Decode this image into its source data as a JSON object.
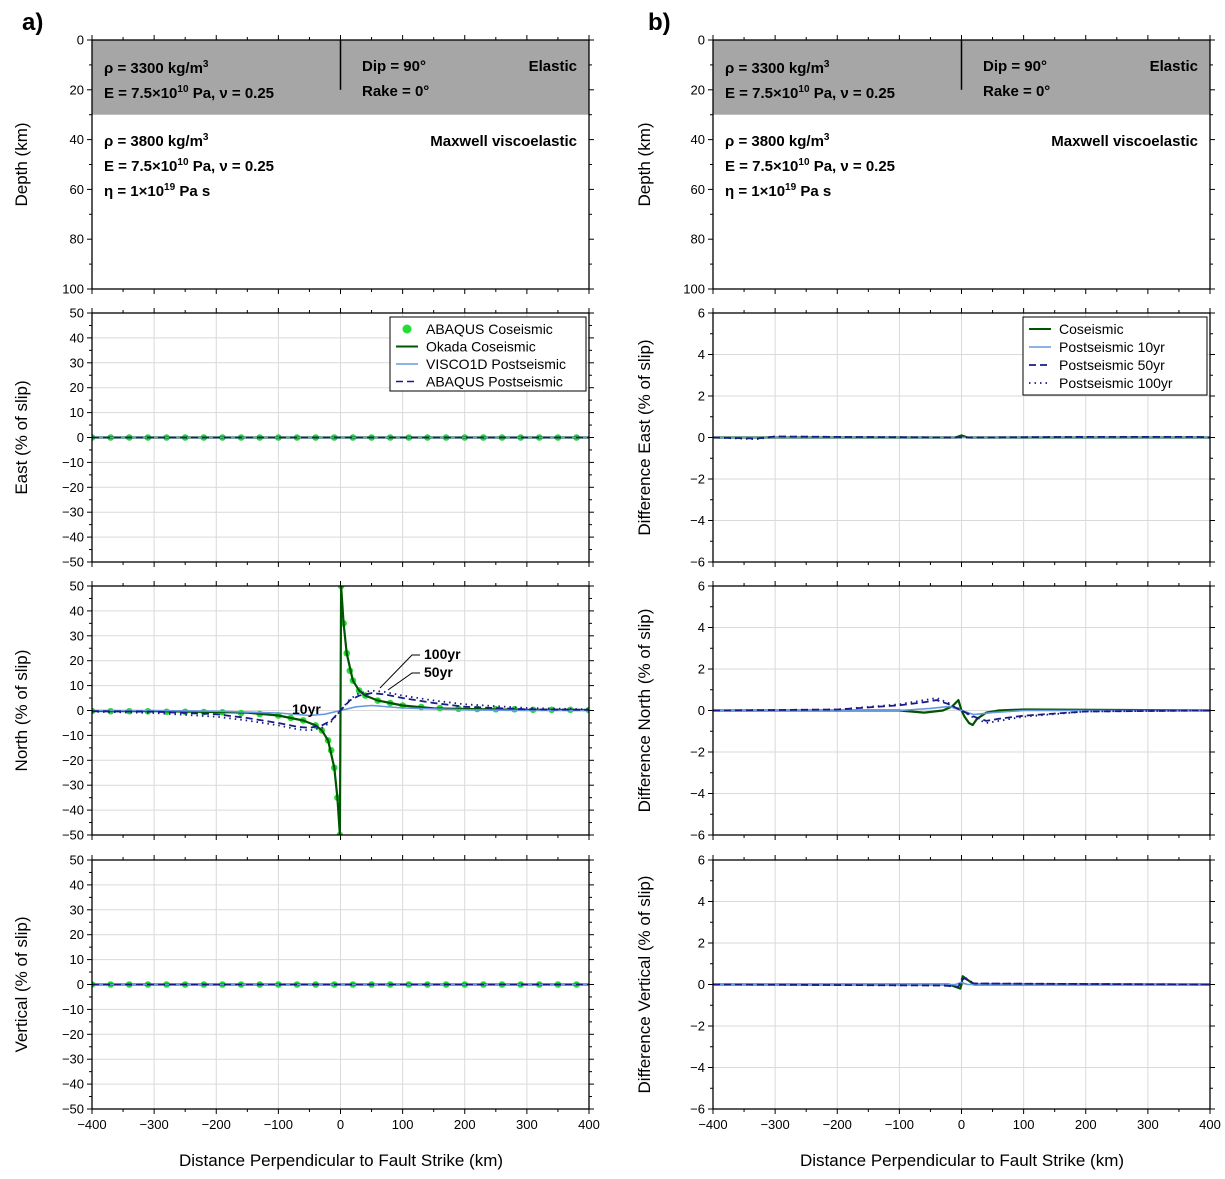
{
  "panel_labels": [
    "a)",
    "b)"
  ],
  "xlabel": "Distance Perpendicular to Fault Strike (km)",
  "x_ticks": [
    "−400",
    "−300",
    "−200",
    "−100",
    "0",
    "100",
    "200",
    "300",
    "400"
  ],
  "model": {
    "upper_density": "ρ = 3300 kg/m",
    "upper_density_exp": "3",
    "upper_modulus_a": "E = 7.5×10",
    "upper_modulus_exp": "10",
    "upper_modulus_b": " Pa, ν = 0.25",
    "dip": "Dip = 90°",
    "rake": "Rake = 0°",
    "upper_type": "Elastic",
    "lower_density": "ρ = 3800 kg/m",
    "lower_density_exp": "3",
    "lower_modulus_a": "E =  7.5×10",
    "lower_modulus_exp": "10",
    "lower_modulus_b": " Pa, ν = 0.25",
    "lower_viscosity_a": "η = 1×10",
    "lower_viscosity_exp": "19",
    "lower_viscosity_b": " Pa s",
    "lower_type": "Maxwell viscoelastic"
  },
  "colors": {
    "abaqus_coseismic": "#22dd33",
    "okada_coseismic": "#005500",
    "visco1d_postseismic": "#6699dd",
    "abaqus_postseismic": "#1a1a88",
    "elastic_layer": "#a6a6a6",
    "grid": "#d9d9d9"
  },
  "left_legend": [
    "ABAQUS Coseismic",
    "Okada Coseismic",
    "VISCO1D Postseismic",
    "ABAQUS Postseismic"
  ],
  "right_legend": [
    "Coseismic",
    "Postseismic 10yr",
    "Postseismic 50yr",
    "Postseismic 100yr"
  ],
  "annotations": [
    "100yr",
    "50yr",
    "10yr"
  ],
  "chart_data": [
    {
      "type": "line",
      "panel": "a-depth",
      "ylabel": "Depth (km)",
      "y_ticks": [
        "0",
        "20",
        "40",
        "60",
        "80",
        "100"
      ],
      "xlim": [
        -400,
        400
      ],
      "ylim": [
        100,
        0
      ],
      "elastic_layer_depth_km": [
        0,
        30
      ],
      "fault_trace": {
        "x": 0,
        "depth": [
          0,
          20
        ]
      }
    },
    {
      "type": "line",
      "panel": "a-east",
      "ylabel": "East (% of slip)",
      "y_ticks": [
        "50",
        "40",
        "30",
        "20",
        "10",
        "0",
        "−10",
        "−20",
        "−30",
        "−40",
        "−50"
      ],
      "xlim": [
        -400,
        400
      ],
      "ylim": [
        -50,
        50
      ],
      "series": [
        {
          "name": "ABAQUS Coseismic",
          "x": [
            -400,
            -370,
            -340,
            -310,
            -280,
            -250,
            -220,
            -190,
            -160,
            -130,
            -100,
            -70,
            -40,
            -10,
            20,
            50,
            80,
            110,
            140,
            170,
            200,
            230,
            260,
            290,
            320,
            350,
            380
          ],
          "y": [
            0,
            0,
            0,
            0,
            0,
            0,
            0,
            0,
            0,
            0,
            0,
            0,
            0,
            0,
            0,
            0,
            0,
            0,
            0,
            0,
            0,
            0,
            0,
            0,
            0,
            0,
            0
          ]
        },
        {
          "name": "Okada Coseismic",
          "x": [
            -400,
            400
          ],
          "y": [
            0,
            0
          ]
        },
        {
          "name": "VISCO1D Postseismic",
          "x": [
            -400,
            400
          ],
          "y": [
            0,
            0
          ]
        },
        {
          "name": "ABAQUS Postseismic",
          "x": [
            -400,
            400
          ],
          "y": [
            0,
            0
          ]
        }
      ]
    },
    {
      "type": "line",
      "panel": "a-north",
      "ylabel": "North (% of slip)",
      "y_ticks": [
        "50",
        "40",
        "30",
        "20",
        "10",
        "0",
        "−10",
        "−20",
        "−30",
        "−40",
        "−50"
      ],
      "xlim": [
        -400,
        400
      ],
      "ylim": [
        -50,
        50
      ],
      "series": [
        {
          "name": "ABAQUS Coseismic",
          "x": [
            -400,
            -370,
            -340,
            -310,
            -280,
            -250,
            -220,
            -190,
            -160,
            -130,
            -100,
            -80,
            -60,
            -40,
            -30,
            -20,
            -15,
            -10,
            -5,
            -1,
            1,
            5,
            10,
            15,
            20,
            30,
            40,
            60,
            80,
            100,
            130,
            160,
            190,
            220,
            250,
            280,
            310,
            340,
            370,
            400
          ],
          "y": [
            -0.2,
            -0.3,
            -0.3,
            -0.3,
            -0.5,
            -0.5,
            -0.6,
            -0.7,
            -1,
            -1.4,
            -2,
            -3,
            -4,
            -6,
            -8,
            -12,
            -16,
            -23,
            -35,
            -50,
            50,
            35,
            23,
            16,
            12,
            8,
            6,
            4,
            3,
            2,
            1.4,
            1,
            0.7,
            0.6,
            0.5,
            0.5,
            0.3,
            0.3,
            0.3,
            0.2
          ]
        },
        {
          "name": "Okada Coseismic",
          "x": [
            -400,
            -300,
            -200,
            -150,
            -100,
            -80,
            -60,
            -40,
            -30,
            -20,
            -10,
            -5,
            -1,
            1,
            5,
            10,
            20,
            30,
            40,
            60,
            80,
            100,
            150,
            200,
            300,
            400
          ],
          "y": [
            -0.2,
            -0.3,
            -0.6,
            -0.9,
            -2,
            -3,
            -4,
            -6,
            -8,
            -12,
            -23,
            -35,
            -50,
            50,
            35,
            23,
            12,
            8,
            6,
            4,
            3,
            2,
            0.9,
            0.6,
            0.3,
            0.2
          ]
        },
        {
          "name": "Postseismic 10yr",
          "x": [
            -400,
            -300,
            -200,
            -100,
            -50,
            -25,
            0,
            25,
            50,
            100,
            200,
            300,
            400
          ],
          "y": [
            0,
            0,
            -0.3,
            -1,
            -2,
            -1.5,
            0,
            1.5,
            2,
            1,
            0.3,
            0,
            0
          ]
        },
        {
          "name": "Postseismic 50yr",
          "x": [
            -400,
            -300,
            -200,
            -150,
            -100,
            -70,
            -50,
            -30,
            -15,
            0,
            15,
            30,
            50,
            70,
            100,
            150,
            200,
            300,
            400
          ],
          "y": [
            -0.3,
            -0.5,
            -1.5,
            -3,
            -5,
            -6.5,
            -7,
            -6,
            -4,
            0,
            4,
            6,
            7,
            6.5,
            5,
            3,
            1.5,
            0.5,
            0.3
          ]
        },
        {
          "name": "Postseismic 100yr",
          "x": [
            -400,
            -300,
            -200,
            -150,
            -100,
            -70,
            -50,
            -30,
            -15,
            0,
            15,
            30,
            50,
            70,
            100,
            150,
            200,
            300,
            400
          ],
          "y": [
            -0.5,
            -1,
            -2.5,
            -4,
            -6,
            -7.5,
            -8,
            -7,
            -4.5,
            0,
            4.5,
            7,
            8,
            7.5,
            6,
            4,
            2.5,
            1,
            0.5
          ]
        }
      ]
    },
    {
      "type": "line",
      "panel": "a-vertical",
      "ylabel": "Vertical (% of slip)",
      "y_ticks": [
        "50",
        "40",
        "30",
        "20",
        "10",
        "0",
        "−10",
        "−20",
        "−30",
        "−40",
        "−50"
      ],
      "xlim": [
        -400,
        400
      ],
      "ylim": [
        -50,
        50
      ],
      "series": [
        {
          "name": "ABAQUS Coseismic",
          "x": [
            -400,
            -370,
            -340,
            -310,
            -280,
            -250,
            -220,
            -190,
            -160,
            -130,
            -100,
            -70,
            -40,
            -10,
            20,
            50,
            80,
            110,
            140,
            170,
            200,
            230,
            260,
            290,
            320,
            350,
            380
          ],
          "y": [
            0,
            0,
            0,
            0,
            0,
            0,
            0,
            0,
            0,
            0,
            0,
            0,
            0,
            0,
            0,
            0,
            0,
            0,
            0,
            0,
            0,
            0,
            0,
            0,
            0,
            0,
            0
          ]
        },
        {
          "name": "Okada Coseismic",
          "x": [
            -400,
            400
          ],
          "y": [
            0,
            0
          ]
        },
        {
          "name": "VISCO1D Postseismic",
          "x": [
            -400,
            400
          ],
          "y": [
            0,
            0
          ]
        },
        {
          "name": "ABAQUS Postseismic",
          "x": [
            -400,
            400
          ],
          "y": [
            0,
            0
          ]
        }
      ]
    },
    {
      "type": "line",
      "panel": "b-depth",
      "ylabel": "Depth (km)",
      "y_ticks": [
        "0",
        "20",
        "40",
        "60",
        "80",
        "100"
      ],
      "xlim": [
        -400,
        400
      ],
      "ylim": [
        100,
        0
      ],
      "elastic_layer_depth_km": [
        0,
        30
      ],
      "fault_trace": {
        "x": 0,
        "depth": [
          0,
          20
        ]
      }
    },
    {
      "type": "line",
      "panel": "b-east",
      "ylabel": "Difference East (% of slip)",
      "y_ticks": [
        "6",
        "4",
        "2",
        "0",
        "−2",
        "−4",
        "−6"
      ],
      "xlim": [
        -400,
        400
      ],
      "ylim": [
        -6,
        6
      ],
      "series": [
        {
          "name": "Coseismic",
          "x": [
            -400,
            -10,
            0,
            10,
            400
          ],
          "y": [
            0,
            0,
            0.1,
            0,
            0
          ]
        },
        {
          "name": "Postseismic 10yr",
          "x": [
            -400,
            400
          ],
          "y": [
            0,
            0
          ]
        },
        {
          "name": "Postseismic 50yr",
          "x": [
            -400,
            -330,
            -300,
            -200,
            0,
            200,
            380,
            400
          ],
          "y": [
            0,
            -0.05,
            0.05,
            0.03,
            0,
            0.03,
            0.03,
            0
          ]
        },
        {
          "name": "Postseismic 100yr",
          "x": [
            -400,
            -330,
            -300,
            -200,
            0,
            200,
            380,
            400
          ],
          "y": [
            0,
            -0.08,
            0.05,
            0.03,
            0,
            0.03,
            0.03,
            0
          ]
        }
      ]
    },
    {
      "type": "line",
      "panel": "b-north",
      "ylabel": "Difference North (% of slip)",
      "y_ticks": [
        "6",
        "4",
        "2",
        "0",
        "−2",
        "−4",
        "−6"
      ],
      "xlim": [
        -400,
        400
      ],
      "ylim": [
        -6,
        6
      ],
      "series": [
        {
          "name": "Coseismic",
          "x": [
            -400,
            -100,
            -60,
            -30,
            -15,
            -5,
            0,
            5,
            12,
            18,
            25,
            40,
            60,
            100,
            400
          ],
          "y": [
            0,
            0,
            -0.1,
            0,
            0.2,
            0.5,
            0,
            -0.3,
            -0.6,
            -0.7,
            -0.4,
            -0.1,
            0,
            0.05,
            0
          ]
        },
        {
          "name": "Postseismic 10yr",
          "x": [
            -400,
            -100,
            -50,
            -20,
            0,
            20,
            50,
            100,
            400
          ],
          "y": [
            0,
            0,
            0.1,
            0.2,
            0,
            -0.2,
            -0.1,
            0,
            0
          ]
        },
        {
          "name": "Postseismic 50yr",
          "x": [
            -400,
            -200,
            -100,
            -60,
            -40,
            -20,
            0,
            20,
            40,
            60,
            100,
            200,
            400
          ],
          "y": [
            0,
            0.05,
            0.25,
            0.4,
            0.5,
            0.3,
            0,
            -0.3,
            -0.5,
            -0.4,
            -0.25,
            -0.05,
            0
          ]
        },
        {
          "name": "Postseismic 100yr",
          "x": [
            -400,
            -200,
            -100,
            -60,
            -40,
            -20,
            0,
            20,
            40,
            60,
            100,
            200,
            400
          ],
          "y": [
            0,
            0.05,
            0.3,
            0.5,
            0.6,
            0.35,
            0,
            -0.35,
            -0.6,
            -0.5,
            -0.3,
            -0.05,
            0
          ]
        }
      ]
    },
    {
      "type": "line",
      "panel": "b-vertical",
      "ylabel": "Difference Vertical (% of slip)",
      "y_ticks": [
        "6",
        "4",
        "2",
        "0",
        "−2",
        "−4",
        "−6"
      ],
      "xlim": [
        -400,
        400
      ],
      "ylim": [
        -6,
        6
      ],
      "series": [
        {
          "name": "Coseismic",
          "x": [
            -400,
            -20,
            -2,
            0,
            2,
            20,
            400
          ],
          "y": [
            0,
            0,
            -0.2,
            0,
            0.4,
            0,
            0
          ]
        },
        {
          "name": "Postseismic 10yr",
          "x": [
            -400,
            -10,
            0,
            10,
            400
          ],
          "y": [
            0,
            0,
            0.1,
            0,
            0
          ]
        },
        {
          "name": "Postseismic 50yr",
          "x": [
            -400,
            -30,
            -5,
            0,
            5,
            20,
            400
          ],
          "y": [
            0,
            -0.05,
            -0.1,
            0.2,
            0.3,
            0.05,
            0
          ]
        },
        {
          "name": "Postseismic 100yr",
          "x": [
            -400,
            -30,
            -5,
            0,
            5,
            20,
            400
          ],
          "y": [
            0,
            -0.05,
            -0.1,
            0.25,
            0.35,
            0.05,
            0
          ]
        }
      ]
    }
  ]
}
